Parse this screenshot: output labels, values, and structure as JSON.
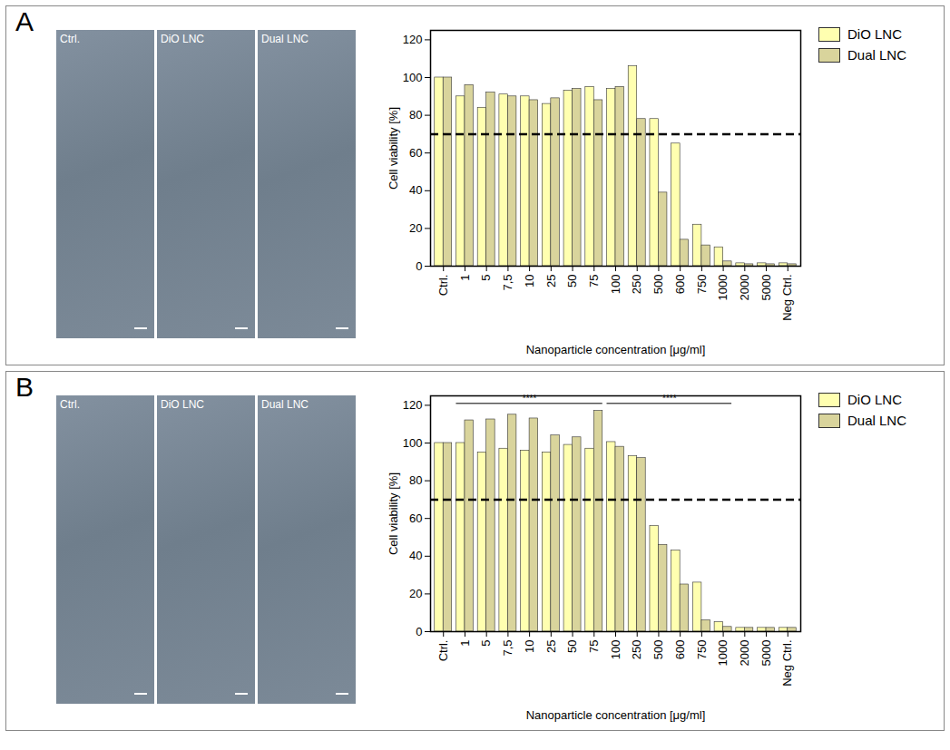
{
  "chart_data": [
    {
      "type": "bar",
      "panel_label": "A",
      "image_labels": [
        "Ctrl.",
        "DiO LNC",
        "Dual LNC"
      ],
      "x_label": "Nanoparticle concentration [μg/ml]",
      "y_label": "Cell viability [%]",
      "categories": [
        "Ctrl.",
        "1",
        "5",
        "7,5",
        "10",
        "25",
        "50",
        "75",
        "100",
        "250",
        "500",
        "600",
        "750",
        "1000",
        "2000",
        "5000",
        "Neg Ctrl."
      ],
      "series": [
        {
          "name": "DiO LNC",
          "color": "#ffffb0",
          "values": [
            100,
            90,
            84,
            91,
            90,
            86,
            93,
            95,
            94,
            106,
            78,
            65,
            22,
            10,
            1.5,
            1.5,
            1.5
          ]
        },
        {
          "name": "Dual LNC",
          "color": "#d9d49c",
          "values": [
            100,
            96,
            92,
            90,
            88,
            89,
            94,
            88,
            95,
            78,
            39,
            14,
            11,
            2.5,
            1,
            1,
            1
          ]
        }
      ],
      "ylim": [
        0,
        125
      ],
      "yticks": [
        0,
        20,
        40,
        60,
        80,
        100,
        120
      ],
      "reference_line": 70,
      "legend": "right"
    },
    {
      "type": "bar",
      "panel_label": "B",
      "image_labels": [
        "Ctrl.",
        "DiO LNC",
        "Dual LNC"
      ],
      "x_label": "Nanoparticle concentration [μg/ml]",
      "y_label": "Cell viability [%]",
      "categories": [
        "Ctrl.",
        "1",
        "5",
        "7,5",
        "10",
        "25",
        "50",
        "75",
        "100",
        "250",
        "500",
        "600",
        "750",
        "1000",
        "2000",
        "5000",
        "Neg Ctrl."
      ],
      "series": [
        {
          "name": "DiO LNC",
          "color": "#ffffb0",
          "values": [
            100,
            100,
            95,
            97,
            96,
            95,
            99,
            97,
            100.5,
            93,
            56,
            43,
            26,
            5,
            2,
            2,
            2
          ]
        },
        {
          "name": "Dual LNC",
          "color": "#d9d49c",
          "values": [
            100,
            112,
            112.5,
            115,
            113,
            104,
            103,
            117,
            98,
            92,
            46,
            25,
            6,
            2.5,
            2,
            2,
            2
          ]
        }
      ],
      "ylim": [
        0,
        125
      ],
      "yticks": [
        0,
        20,
        40,
        60,
        80,
        100,
        120
      ],
      "reference_line": 70,
      "legend": "right",
      "annotations": [
        {
          "text": "****",
          "from": "1",
          "to": "75",
          "y": 121
        },
        {
          "text": "****",
          "from": "100",
          "to": "1000",
          "y": 121
        }
      ]
    }
  ]
}
